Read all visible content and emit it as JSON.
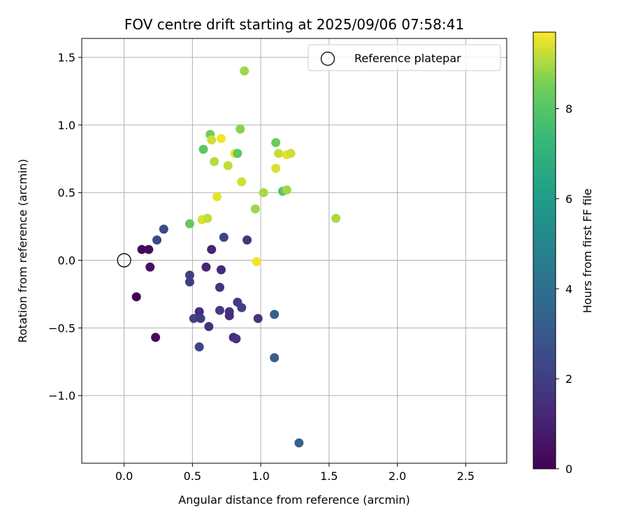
{
  "chart_data": {
    "type": "scatter",
    "title": "FOV centre drift starting at 2025/09/06 07:58:41",
    "xlabel": "Angular distance from reference (arcmin)",
    "ylabel": "Rotation from reference (arcmin)",
    "xlim": [
      -0.31,
      2.8
    ],
    "ylim": [
      -1.5,
      1.64
    ],
    "xticks": [
      0.0,
      0.5,
      1.0,
      1.5,
      2.0,
      2.5
    ],
    "xtick_labels": [
      "0.0",
      "0.5",
      "1.0",
      "1.5",
      "2.0",
      "2.5"
    ],
    "yticks": [
      1.5,
      1.0,
      0.5,
      0.0,
      -0.5,
      -1.0
    ],
    "ytick_labels": [
      "1.5",
      "1.0",
      "0.5",
      "0.0",
      "−0.5",
      "−1.0"
    ],
    "grid": true,
    "legend": {
      "entries": [
        "Reference platepar"
      ],
      "placement": "top-right"
    },
    "reference_point": {
      "x": 0.0,
      "y": 0.0,
      "label": "Reference platepar"
    },
    "colorbar": {
      "label": "Hours from first FF file",
      "range": [
        0,
        9.7
      ],
      "ticks": [
        0,
        2,
        4,
        6,
        8
      ],
      "tick_labels": [
        "0",
        "2",
        "4",
        "6",
        "8"
      ],
      "colormap": "viridis"
    },
    "points": [
      {
        "x": 0.09,
        "y": -0.27,
        "h": 0.0
      },
      {
        "x": 0.13,
        "y": 0.08,
        "h": 0.2
      },
      {
        "x": 0.18,
        "y": 0.08,
        "h": 0.3
      },
      {
        "x": 0.19,
        "y": -0.05,
        "h": 0.5
      },
      {
        "x": 0.23,
        "y": -0.57,
        "h": 0.2
      },
      {
        "x": 0.24,
        "y": 0.15,
        "h": 2.4
      },
      {
        "x": 0.29,
        "y": 0.23,
        "h": 2.5
      },
      {
        "x": 0.48,
        "y": -0.11,
        "h": 2.1
      },
      {
        "x": 0.48,
        "y": -0.16,
        "h": 2.0
      },
      {
        "x": 0.51,
        "y": -0.43,
        "h": 2.2
      },
      {
        "x": 0.55,
        "y": -0.38,
        "h": 1.4
      },
      {
        "x": 0.55,
        "y": -0.64,
        "h": 2.3
      },
      {
        "x": 0.56,
        "y": -0.43,
        "h": 1.9
      },
      {
        "x": 0.6,
        "y": -0.05,
        "h": 1.1
      },
      {
        "x": 0.62,
        "y": -0.49,
        "h": 1.5
      },
      {
        "x": 0.64,
        "y": 0.08,
        "h": 1.1
      },
      {
        "x": 0.7,
        "y": -0.2,
        "h": 1.7
      },
      {
        "x": 0.7,
        "y": -0.37,
        "h": 2.0
      },
      {
        "x": 0.71,
        "y": -0.07,
        "h": 1.2
      },
      {
        "x": 0.73,
        "y": 0.17,
        "h": 2.3
      },
      {
        "x": 0.77,
        "y": -0.38,
        "h": 1.6
      },
      {
        "x": 0.77,
        "y": -0.41,
        "h": 1.4
      },
      {
        "x": 0.8,
        "y": -0.57,
        "h": 1.3
      },
      {
        "x": 0.82,
        "y": -0.58,
        "h": 1.6
      },
      {
        "x": 0.83,
        "y": -0.31,
        "h": 1.9
      },
      {
        "x": 0.86,
        "y": -0.35,
        "h": 2.1
      },
      {
        "x": 0.9,
        "y": 0.15,
        "h": 1.8
      },
      {
        "x": 0.98,
        "y": -0.43,
        "h": 1.7
      },
      {
        "x": 1.1,
        "y": -0.4,
        "h": 3.3
      },
      {
        "x": 1.1,
        "y": -0.72,
        "h": 3.2
      },
      {
        "x": 1.28,
        "y": -1.35,
        "h": 3.4
      },
      {
        "x": 0.48,
        "y": 0.27,
        "h": 8.3
      },
      {
        "x": 0.57,
        "y": 0.3,
        "h": 9.4
      },
      {
        "x": 0.58,
        "y": 0.82,
        "h": 8.1
      },
      {
        "x": 0.61,
        "y": 0.31,
        "h": 9.2
      },
      {
        "x": 0.63,
        "y": 0.93,
        "h": 8.5
      },
      {
        "x": 0.64,
        "y": 0.89,
        "h": 9.3
      },
      {
        "x": 0.66,
        "y": 0.73,
        "h": 9.1
      },
      {
        "x": 0.68,
        "y": 0.47,
        "h": 9.5
      },
      {
        "x": 0.71,
        "y": 0.9,
        "h": 9.6
      },
      {
        "x": 0.76,
        "y": 0.7,
        "h": 9.2
      },
      {
        "x": 0.81,
        "y": 0.79,
        "h": 9.6
      },
      {
        "x": 0.83,
        "y": 0.79,
        "h": 8.1
      },
      {
        "x": 0.85,
        "y": 0.97,
        "h": 8.7
      },
      {
        "x": 0.86,
        "y": 0.58,
        "h": 9.3
      },
      {
        "x": 0.88,
        "y": 1.4,
        "h": 8.9
      },
      {
        "x": 0.96,
        "y": 0.38,
        "h": 8.9
      },
      {
        "x": 0.97,
        "y": -0.01,
        "h": 9.6
      },
      {
        "x": 1.02,
        "y": 0.5,
        "h": 9.0
      },
      {
        "x": 1.11,
        "y": 0.87,
        "h": 8.4
      },
      {
        "x": 1.11,
        "y": 0.68,
        "h": 9.4
      },
      {
        "x": 1.13,
        "y": 0.79,
        "h": 9.2
      },
      {
        "x": 1.16,
        "y": 0.51,
        "h": 8.0
      },
      {
        "x": 1.19,
        "y": 0.78,
        "h": 9.5
      },
      {
        "x": 1.19,
        "y": 0.52,
        "h": 8.9
      },
      {
        "x": 1.22,
        "y": 0.79,
        "h": 9.3
      },
      {
        "x": 1.55,
        "y": 0.31,
        "h": 9.0
      }
    ]
  }
}
